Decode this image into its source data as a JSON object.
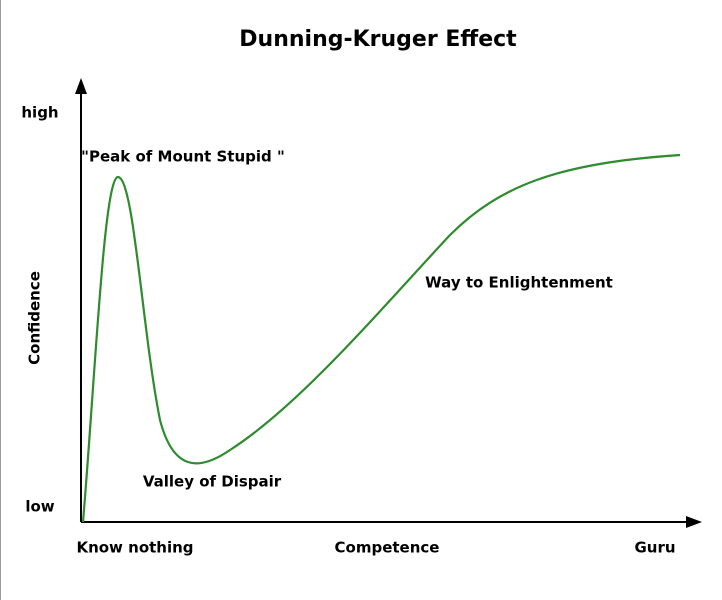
{
  "header": {
    "title": "Dunning-Kruger Effect"
  },
  "y_axis": {
    "label": "Confidence",
    "high": "high",
    "low": "low"
  },
  "x_axis": {
    "label": "Competence",
    "start": "Know nothing",
    "end": "Guru"
  },
  "annotations": {
    "peak": "\"Peak of Mount Stupid \"",
    "valley": "Valley of Dispair",
    "slope": "Way to Enlightenment"
  }
}
